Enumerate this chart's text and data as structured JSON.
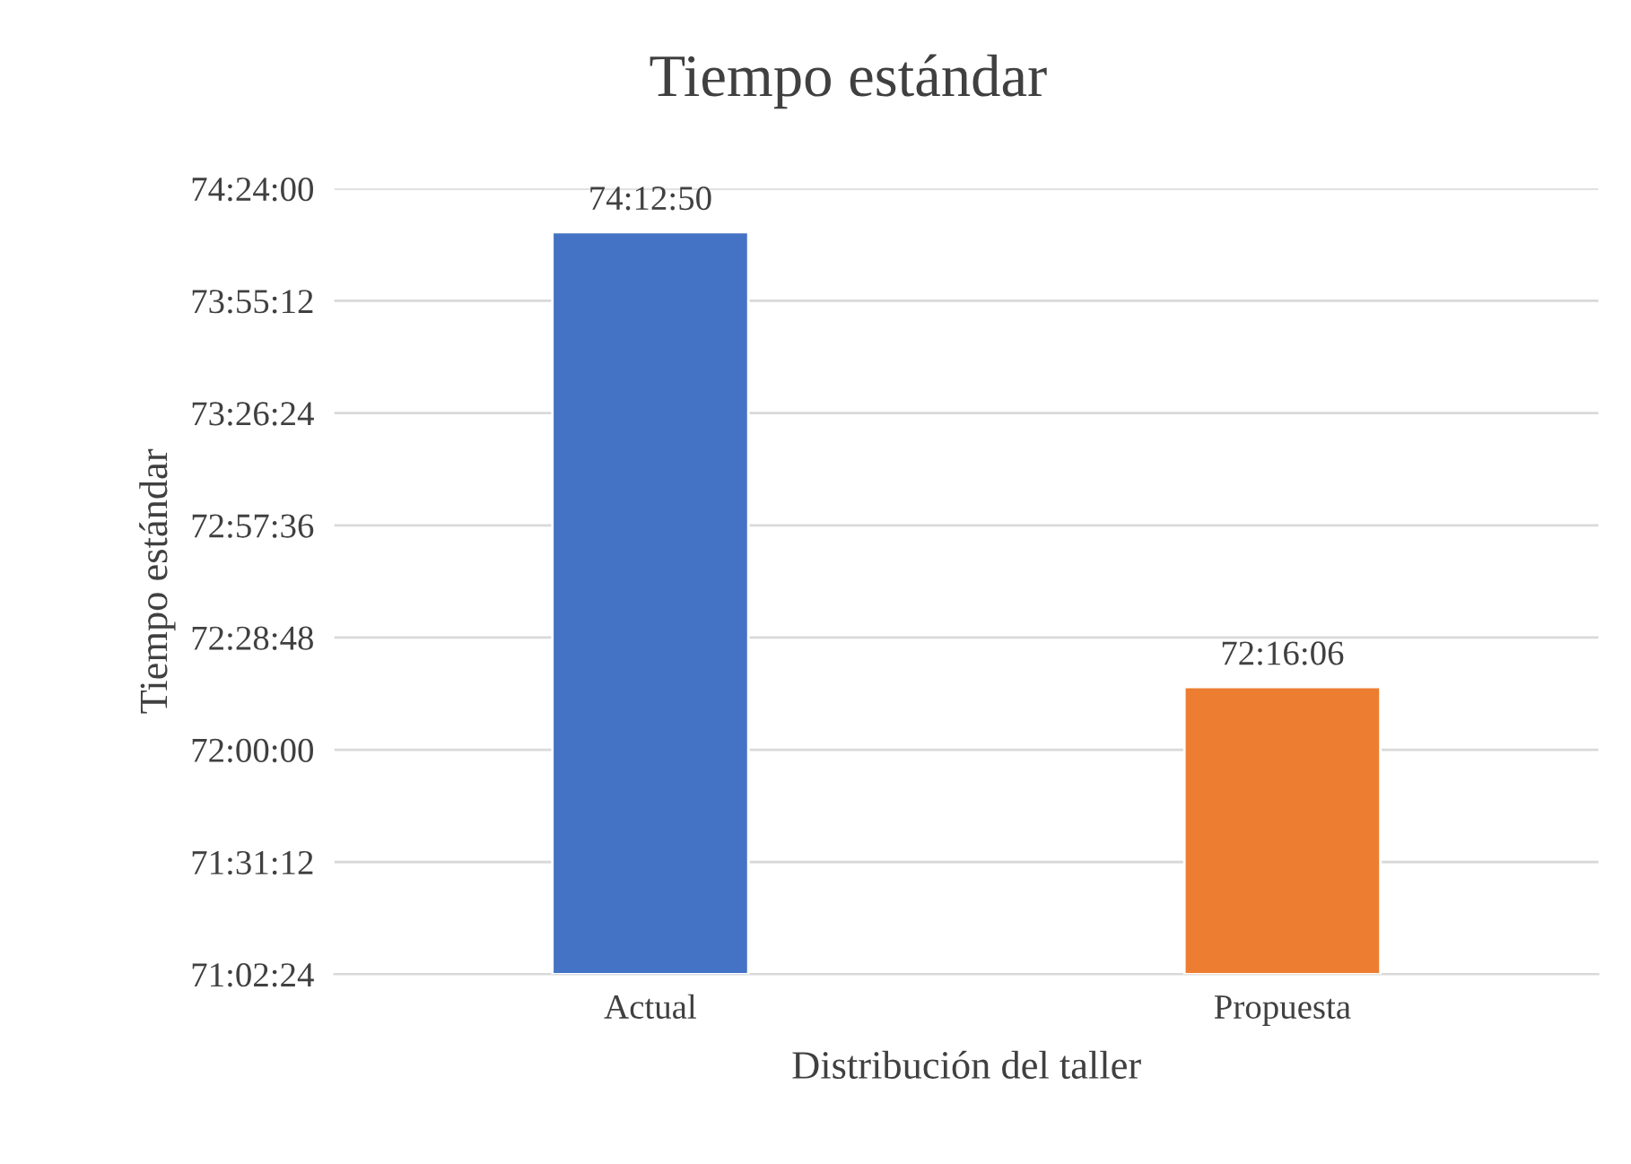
{
  "chart_data": {
    "type": "bar",
    "title": "Tiempo estándar",
    "xlabel": "Distribución del taller",
    "ylabel": "Tiempo estándar",
    "categories": [
      "Actual",
      "Propuesta"
    ],
    "values": [
      74.213889,
      72.268333
    ],
    "colors": [
      "#4472c4",
      "#ed7d31"
    ],
    "value_labels": [
      "74:12:50",
      "72:16:06"
    ],
    "ylim": [
      71.04,
      74.4
    ],
    "yticks": [
      {
        "value": 71.04,
        "label": "71:02:24"
      },
      {
        "value": 71.52,
        "label": "71:31:12"
      },
      {
        "value": 72.0,
        "label": "72:00:00"
      },
      {
        "value": 72.48,
        "label": "72:28:48"
      },
      {
        "value": 72.96,
        "label": "72:57:36"
      },
      {
        "value": 73.44,
        "label": "73:26:24"
      },
      {
        "value": 73.92,
        "label": "73:55:12"
      },
      {
        "value": 74.4,
        "label": "74:24:00"
      }
    ],
    "grid": "y",
    "legend": false
  }
}
